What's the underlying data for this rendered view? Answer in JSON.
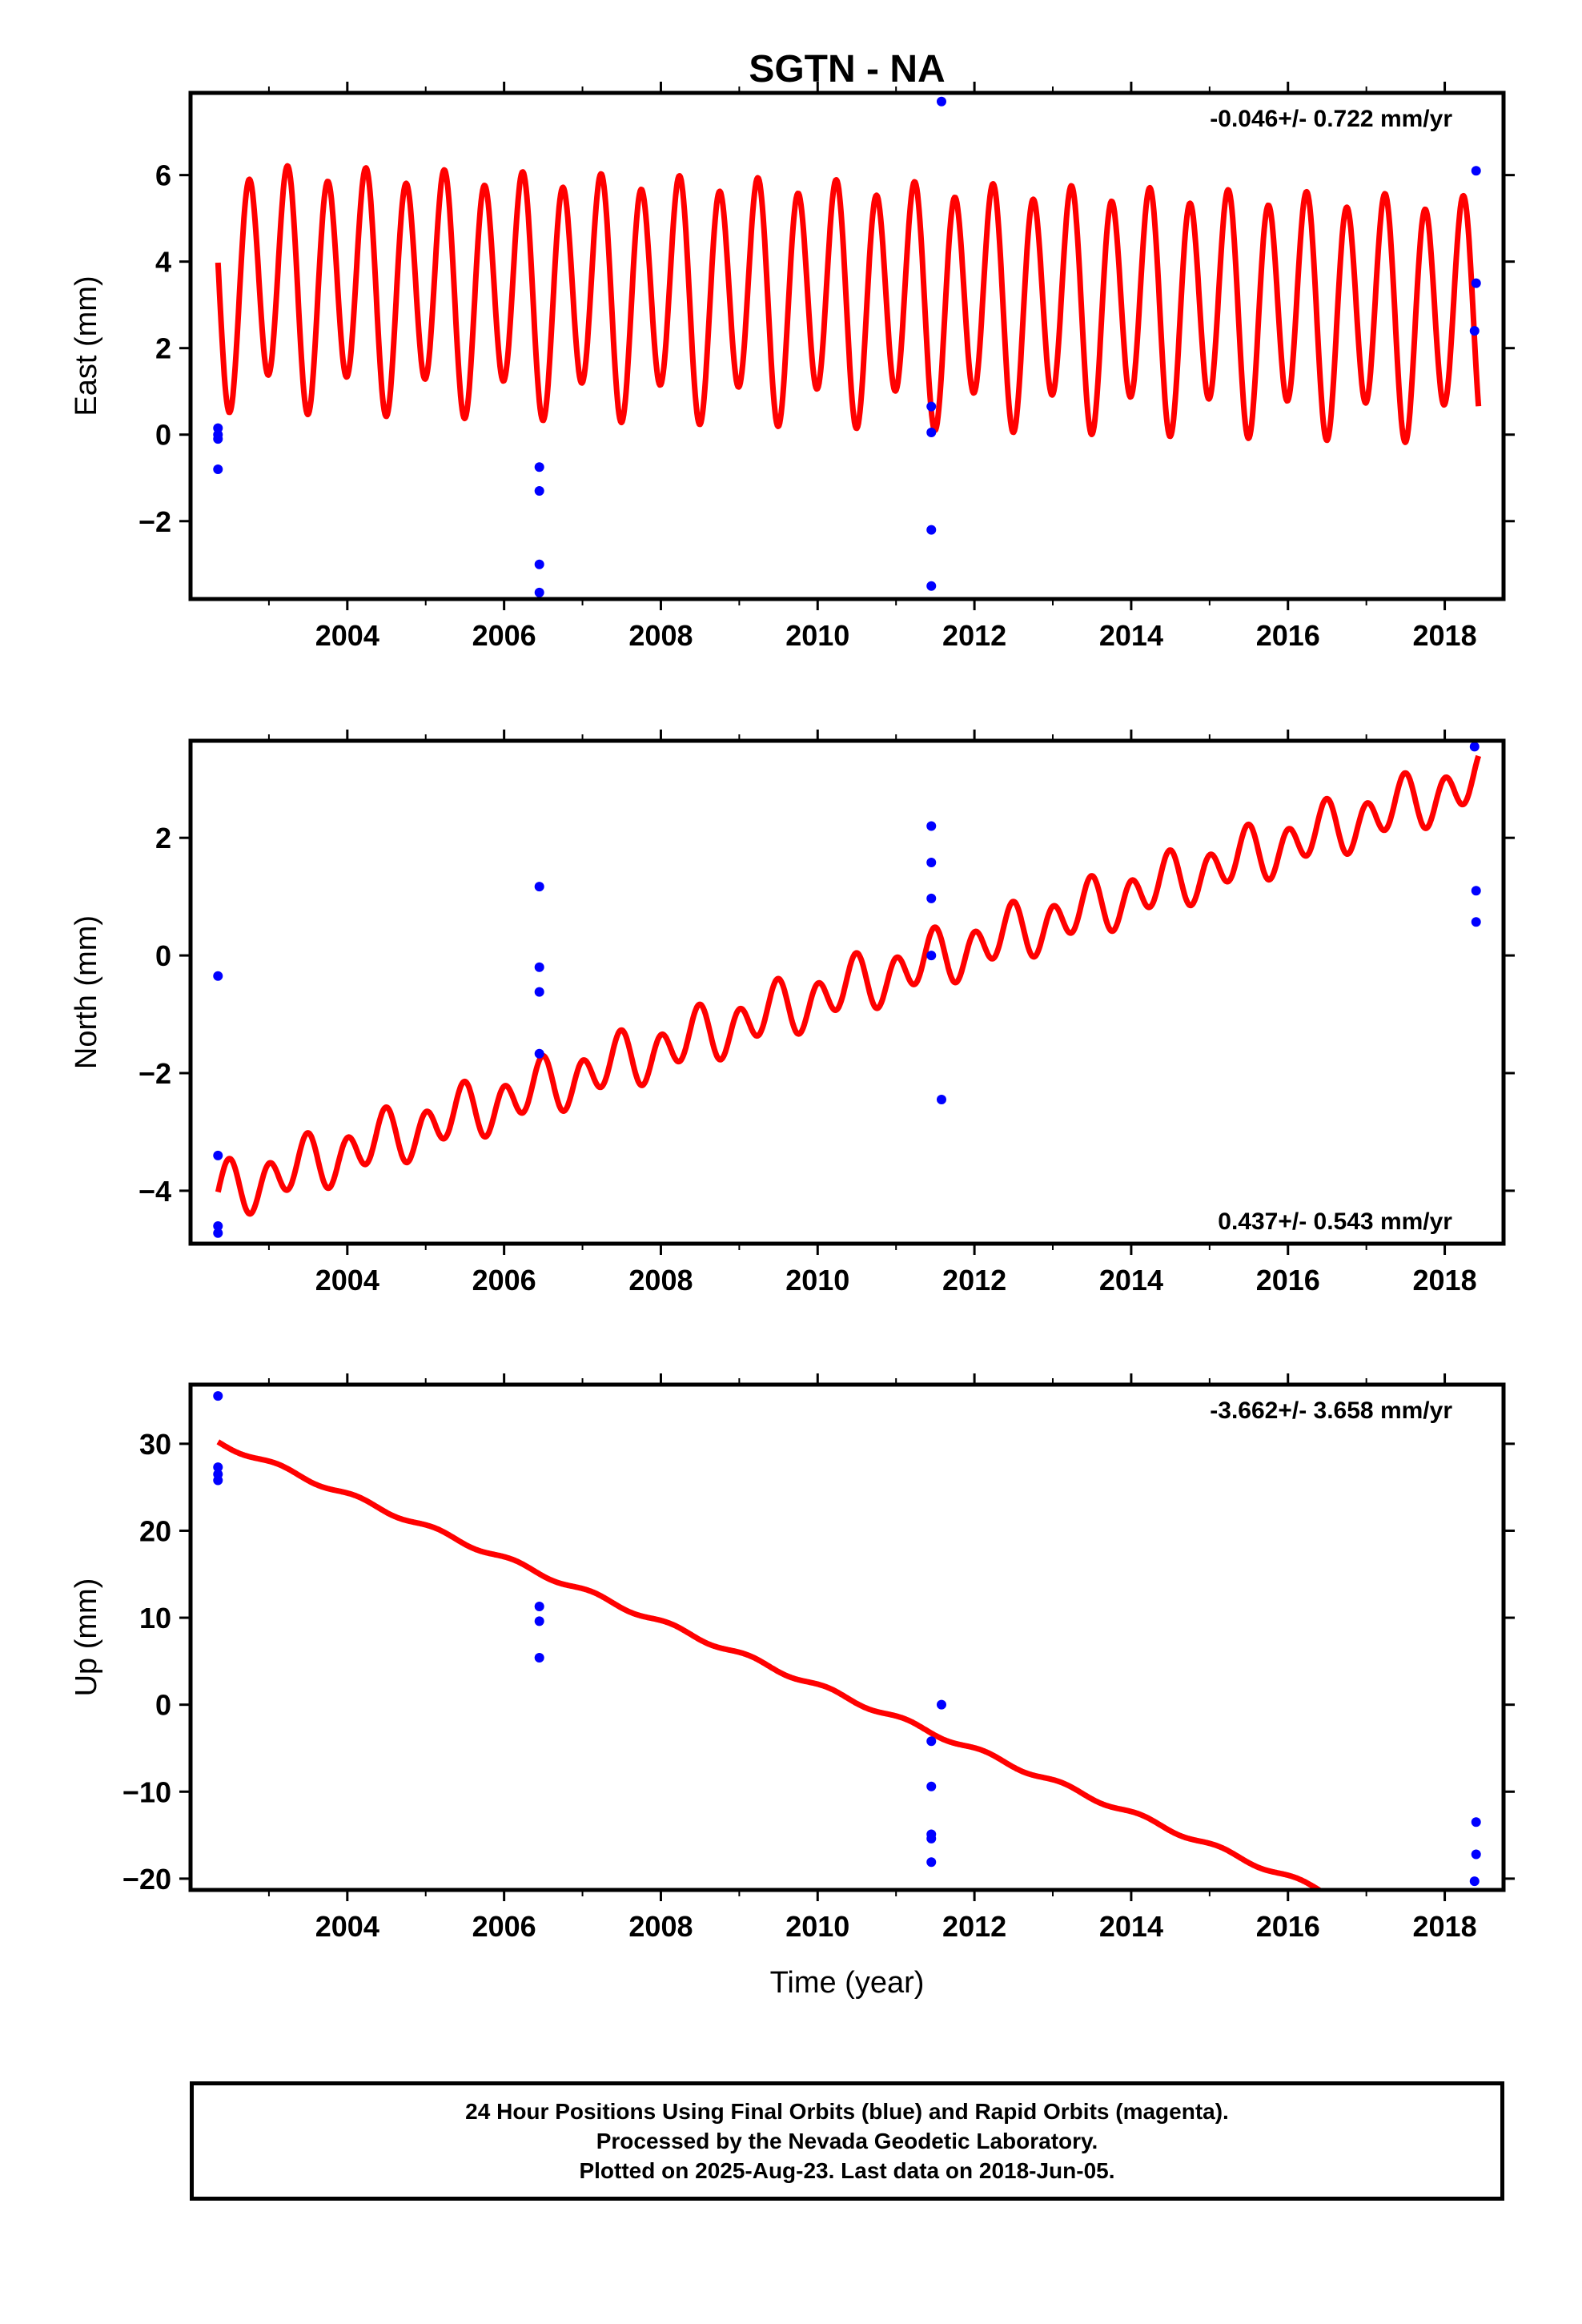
{
  "chart_data": [
    {
      "type": "line",
      "title": "SGTN - NA",
      "ylabel": "East (mm)",
      "xlabel": "",
      "rate_label": "-0.046+/- 0.722 mm/yr",
      "rate_position": "top-right",
      "xlim": [
        2002.0,
        2018.75
      ],
      "ylim": [
        -3.8,
        7.9
      ],
      "xticks": [
        2004,
        2006,
        2008,
        2010,
        2012,
        2014,
        2016,
        2018
      ],
      "xtick_labels": [
        "2004",
        "2006",
        "2008",
        "2010",
        "2012",
        "2014",
        "2016",
        "2018"
      ],
      "yticks": [
        -2,
        0,
        2,
        4,
        6
      ],
      "ytick_labels": [
        "−2",
        "0",
        "2",
        "4",
        "6"
      ],
      "model": {
        "color": "#ff0000",
        "t_start": 2002.35,
        "t_end": 2018.43,
        "ref_year": 2010.4,
        "offset_at_ref": 3.15,
        "rate": -0.046,
        "annual_cos": 0.45,
        "annual_sin": 0.15,
        "semiannual_cos": -2.55,
        "semiannual_sin": 0.2
      },
      "points": {
        "color": "#0000ff",
        "x": [
          2002.35,
          2002.35,
          2002.35,
          2002.35,
          2006.45,
          2006.45,
          2006.45,
          2006.45,
          2011.45,
          2011.45,
          2011.45,
          2011.45,
          2011.58,
          2018.38,
          2018.4,
          2018.4
        ],
        "y": [
          0.15,
          0.0,
          -0.1,
          -0.8,
          -0.75,
          -1.3,
          -3.0,
          -3.65,
          0.65,
          0.05,
          -2.2,
          -3.5,
          7.7,
          2.4,
          3.5,
          6.1
        ]
      }
    },
    {
      "type": "line",
      "title": "",
      "ylabel": "North (mm)",
      "xlabel": "",
      "rate_label": "0.437+/- 0.543 mm/yr",
      "rate_position": "bottom-right",
      "xlim": [
        2002.0,
        2018.75
      ],
      "ylim": [
        -4.9,
        3.65
      ],
      "xticks": [
        2004,
        2006,
        2008,
        2010,
        2012,
        2014,
        2016,
        2018
      ],
      "xtick_labels": [
        "2004",
        "2006",
        "2008",
        "2010",
        "2012",
        "2014",
        "2016",
        "2018"
      ],
      "yticks": [
        -4,
        -2,
        0,
        2
      ],
      "ytick_labels": [
        "−4",
        "−2",
        "0",
        "2"
      ],
      "model": {
        "color": "#ff0000",
        "t_start": 2002.35,
        "t_end": 2018.43,
        "ref_year": 2010.4,
        "offset_at_ref": -0.55,
        "rate": 0.437,
        "annual_cos": -0.15,
        "annual_sin": 0.1,
        "semiannual_cos": 0.4,
        "semiannual_sin": 0.0
      },
      "points": {
        "color": "#0000ff",
        "x": [
          2002.35,
          2002.35,
          2002.35,
          2002.35,
          2006.45,
          2006.45,
          2006.45,
          2006.45,
          2011.45,
          2011.45,
          2011.45,
          2011.45,
          2011.58,
          2018.38,
          2018.4,
          2018.4
        ],
        "y": [
          -0.35,
          -3.4,
          -4.6,
          -4.72,
          1.17,
          -0.2,
          -0.62,
          -1.67,
          2.2,
          1.58,
          0.97,
          0.0,
          -2.45,
          3.55,
          1.1,
          0.57
        ]
      }
    },
    {
      "type": "line",
      "title": "",
      "ylabel": "Up (mm)",
      "xlabel": "Time (year)",
      "rate_label": "-3.662+/- 3.658 mm/yr",
      "rate_position": "top-right",
      "xlim": [
        2002.0,
        2018.75
      ],
      "ylim": [
        -21.3,
        36.8
      ],
      "xticks": [
        2004,
        2006,
        2008,
        2010,
        2012,
        2014,
        2016,
        2018
      ],
      "xtick_labels": [
        "2004",
        "2006",
        "2008",
        "2010",
        "2012",
        "2014",
        "2016",
        "2018"
      ],
      "yticks": [
        -20,
        -10,
        0,
        10,
        20,
        30
      ],
      "ytick_labels": [
        "−20",
        "−10",
        "0",
        "10",
        "20",
        "30"
      ],
      "model": {
        "color": "#ff0000",
        "t_start": 2002.35,
        "t_end": 2018.43,
        "ref_year": 2010.4,
        "offset_at_ref": 0.7,
        "rate": -3.662,
        "annual_cos": 0.2,
        "annual_sin": 0.2,
        "semiannual_cos": 0.0,
        "semiannual_sin": 0.0
      },
      "points": {
        "color": "#0000ff",
        "x": [
          2002.35,
          2002.35,
          2002.35,
          2002.35,
          2006.45,
          2006.45,
          2006.45,
          2011.45,
          2011.45,
          2011.45,
          2011.45,
          2011.45,
          2011.58,
          2018.38,
          2018.4,
          2018.4
        ],
        "y": [
          35.5,
          27.3,
          26.5,
          25.8,
          11.3,
          9.6,
          5.4,
          -4.2,
          -9.4,
          -14.9,
          -15.4,
          -18.1,
          0.0,
          -20.3,
          -17.2,
          -13.5
        ]
      }
    }
  ],
  "footer": {
    "line1": "24 Hour Positions Using Final Orbits (blue) and Rapid Orbits (magenta).",
    "line2": "Processed by the Nevada Geodetic Laboratory.",
    "line3": "Plotted on 2025-Aug-23. Last data on 2018-Jun-05."
  }
}
